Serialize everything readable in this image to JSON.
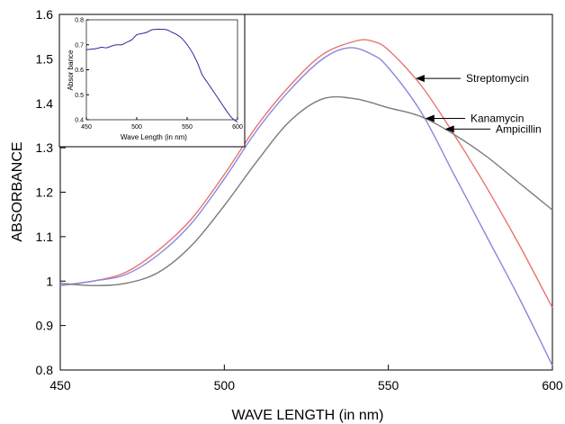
{
  "chart_data": [
    {
      "type": "line",
      "title": "",
      "xlabel": "WAVE LENGTH (in nm)",
      "ylabel": "ABSORBANCE",
      "xlim": [
        450,
        600
      ],
      "ylim": [
        0.8,
        1.6
      ],
      "x_ticks": [
        "450",
        "500",
        "550",
        "600"
      ],
      "y_ticks": [
        "0.8",
        "0.9",
        "1",
        "1.1",
        "1.2",
        "1.3",
        "1.4",
        "1.5",
        "1.6"
      ],
      "grid": false,
      "legend": "none",
      "series": [
        {
          "name": "Streptomycin",
          "color": "#e8736e",
          "x": [
            450,
            460,
            470,
            480,
            490,
            500,
            510,
            520,
            530,
            540,
            545,
            550,
            560,
            570,
            580,
            590,
            600
          ],
          "y": [
            0.99,
            1.0,
            1.02,
            1.07,
            1.14,
            1.24,
            1.35,
            1.44,
            1.51,
            1.54,
            1.54,
            1.52,
            1.44,
            1.33,
            1.21,
            1.08,
            0.94
          ]
        },
        {
          "name": "Kanamycin",
          "color": "#8888dd",
          "x": [
            450,
            460,
            470,
            480,
            490,
            500,
            510,
            520,
            530,
            538,
            545,
            550,
            560,
            570,
            580,
            590,
            600
          ],
          "y": [
            0.99,
            1.0,
            1.015,
            1.06,
            1.13,
            1.23,
            1.34,
            1.43,
            1.5,
            1.525,
            1.51,
            1.48,
            1.38,
            1.24,
            1.1,
            0.96,
            0.81
          ]
        },
        {
          "name": "Ampicillin",
          "color": "#7a7a7a",
          "x": [
            450,
            460,
            470,
            480,
            490,
            500,
            510,
            520,
            530,
            540,
            550,
            560,
            570,
            580,
            590,
            600
          ],
          "y": [
            0.995,
            0.99,
            0.995,
            1.02,
            1.08,
            1.17,
            1.27,
            1.36,
            1.41,
            1.41,
            1.39,
            1.37,
            1.33,
            1.28,
            1.22,
            1.16
          ]
        }
      ],
      "annotations": [
        "Streptomycin",
        "Kanamycin",
        "Ampicillin"
      ]
    },
    {
      "type": "line",
      "title": "",
      "xlabel": "Wave Length (in nm)",
      "ylabel": "Absor bance",
      "xlim": [
        450,
        600
      ],
      "ylim": [
        0.4,
        0.8
      ],
      "x_ticks": [
        "450",
        "500",
        "550",
        "600"
      ],
      "y_ticks": [
        "0.4",
        "0.5",
        "0.6",
        "0.7",
        "0.8"
      ],
      "grid": false,
      "legend": "none",
      "series": [
        {
          "color": "#2a2a9a",
          "x": [
            450,
            460,
            465,
            470,
            475,
            480,
            485,
            490,
            495,
            500,
            505,
            510,
            515,
            520,
            525,
            530,
            535,
            540,
            545,
            550,
            555,
            560,
            565,
            570,
            575,
            580,
            585,
            590,
            595,
            600
          ],
          "y": [
            0.68,
            0.685,
            0.69,
            0.688,
            0.695,
            0.7,
            0.7,
            0.71,
            0.72,
            0.74,
            0.745,
            0.75,
            0.76,
            0.762,
            0.762,
            0.76,
            0.75,
            0.74,
            0.725,
            0.7,
            0.67,
            0.63,
            0.58,
            0.55,
            0.52,
            0.49,
            0.46,
            0.43,
            0.405,
            0.39
          ]
        }
      ]
    }
  ]
}
